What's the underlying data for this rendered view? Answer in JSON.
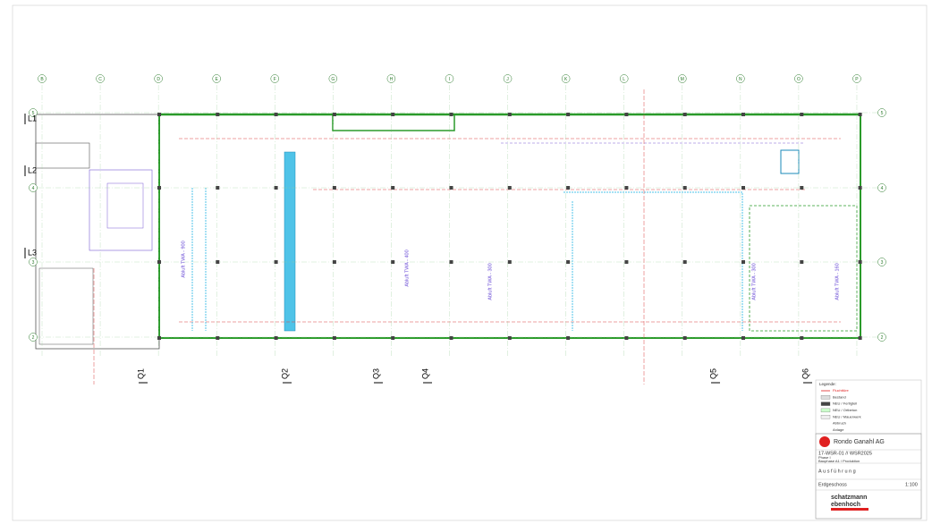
{
  "grid": {
    "columns": [
      "B",
      "C",
      "D",
      "E",
      "F",
      "G",
      "H",
      "I",
      "J",
      "K",
      "L",
      "M",
      "N",
      "O",
      "P"
    ],
    "rows": [
      "5",
      "4",
      "3",
      "2"
    ]
  },
  "sections": {
    "left": [
      "L1",
      "L2",
      "L3"
    ],
    "bottom": [
      "Q1",
      "Q2",
      "Q3",
      "Q4",
      "Q5",
      "Q6"
    ]
  },
  "annotations": [
    "Abluft TWA - 900",
    "Abluft TWA - 400",
    "Abluft TWA - 300",
    "Abluft TWA - 300",
    "Abluft TWA - 160"
  ],
  "legend": {
    "title": "Legende:",
    "items": [
      "Fluchttüre",
      "Bestand",
      "NEU / Fertigteil",
      "NEU / Ortbeton",
      "NEU / Mauerwerk",
      "Abbruch",
      "Anlage"
    ]
  },
  "title_block": {
    "client": "Rondo Ganahl AG",
    "project": "17-WSR-01 // WSR2025",
    "phase": "Phase I",
    "subtitle": "Bauphase A1 / Produktion",
    "status": "Ausführung",
    "floor": "Erdgeschoss",
    "scale": "1:100",
    "firm_1": "schatzmann",
    "firm_2": "ebenhoch"
  }
}
